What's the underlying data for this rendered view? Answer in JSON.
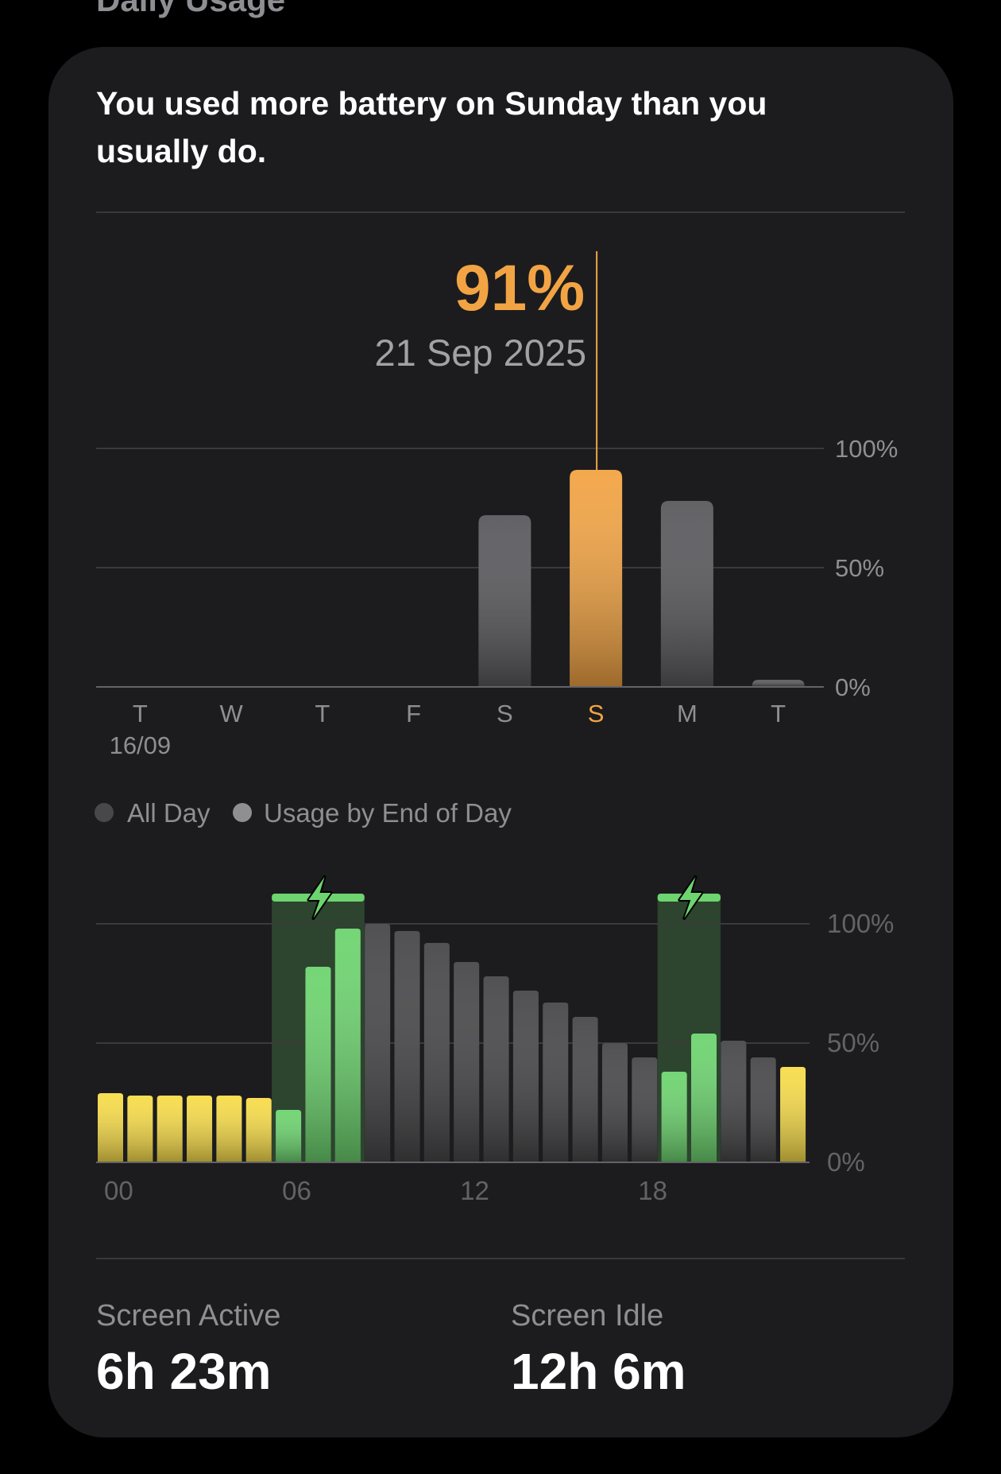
{
  "header": {
    "title": "Daily Usage"
  },
  "message": "You used more battery on Sunday than you usually do.",
  "daily_chart": {
    "type": "bar",
    "categories": [
      "T",
      "W",
      "T",
      "F",
      "S",
      "S",
      "M",
      "T"
    ],
    "category_sublabels": [
      "16/09",
      null,
      null,
      null,
      null,
      null,
      null,
      null
    ],
    "values": [
      null,
      null,
      null,
      null,
      72,
      91,
      78,
      3
    ],
    "value_labels": [
      null,
      null,
      null,
      null,
      null,
      "91%",
      null,
      null
    ],
    "annotation": "21 Sep 2025",
    "selected": 5,
    "color": "#5a5a5e",
    "selected_color": "#f2a444",
    "ylim": [
      0,
      100
    ],
    "yticks": [
      {
        "value": 0,
        "label": "0%"
      },
      {
        "value": 50,
        "label": "50%"
      },
      {
        "value": 100,
        "label": "100%"
      }
    ],
    "grid": true
  },
  "legend": [
    "All Day",
    "Usage by End of Day"
  ],
  "hourly_chart": {
    "type": "bar",
    "x": [
      0,
      1,
      2,
      3,
      4,
      5,
      6,
      7,
      8,
      9,
      10,
      11,
      12,
      13,
      14,
      15,
      16,
      17,
      18,
      19,
      20,
      21,
      22,
      23
    ],
    "values": [
      29,
      28,
      28,
      28,
      28,
      27,
      22,
      82,
      98,
      100,
      97,
      92,
      84,
      78,
      72,
      67,
      61,
      50,
      44,
      38,
      54,
      51,
      44,
      40
    ],
    "colors": [
      "#f7dc4a",
      "#f7dc4a",
      "#f7dc4a",
      "#f7dc4a",
      "#f7dc4a",
      "#f7dc4a",
      "#6dd46f",
      "#6dd46f",
      "#6dd46f",
      "#48484a",
      "#48484a",
      "#48484a",
      "#48484a",
      "#48484a",
      "#48484a",
      "#48484a",
      "#48484a",
      "#48484a",
      "#48484a",
      "#6dd46f",
      "#6dd46f",
      "#48484a",
      "#48484a",
      "#f7dc4a"
    ],
    "charging_color": "#6dd46f",
    "xticks": [
      {
        "value": 0,
        "label": "00"
      },
      {
        "value": 6,
        "label": "06"
      },
      {
        "value": 12,
        "label": "12"
      },
      {
        "value": 18,
        "label": "18"
      }
    ],
    "ylim": [
      0,
      100
    ],
    "yticks": [
      {
        "value": 0,
        "label": "0%"
      },
      {
        "value": 50,
        "label": "50%"
      },
      {
        "value": 100,
        "label": "100%"
      }
    ],
    "grid": true
  },
  "stats": [
    {
      "label": "Screen Active",
      "value": "6h 23m"
    },
    {
      "label": "Screen Idle",
      "value": "12h 6m"
    }
  ]
}
